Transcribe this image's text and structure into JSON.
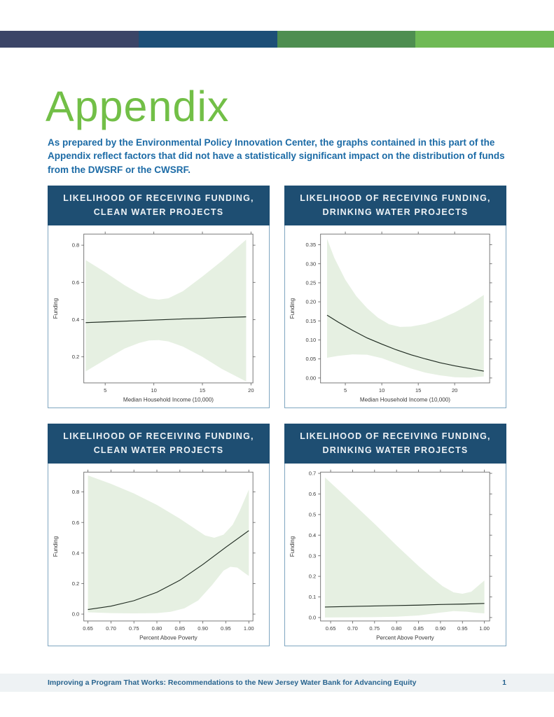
{
  "page": {
    "heading": "Appendix",
    "intro": "As prepared by the Environmental Policy Innovation Center, the graphs contained in this part of the Appendix reflect factors that did not have a statistically significant impact on the distribution of funds from the DWSRF or the CWSRF.",
    "footer": {
      "text": "Improving a Program That Works: Recommendations to the New Jersey Water Bank for Advancing Equity",
      "page_number": "1"
    }
  },
  "colors": {
    "top_bar_segments": [
      "#3B4567",
      "#1D4F77",
      "#4E8E50",
      "#6FBA55"
    ],
    "heading_green": "#72BF47",
    "intro_blue": "#1C6BA6",
    "chart_header_bg": "#1E4E72",
    "chart_header_text": "#EDF2F6",
    "card_border": "#7FA6C0",
    "band_fill": "#E6F0E2",
    "line_color": "#1F2B21",
    "axis_color": "#6A6A6A",
    "axis_text": "#3A3A3A",
    "footer_bg": "#EEF2F4",
    "footer_text": "#28648F"
  },
  "chart_data": [
    {
      "type": "line",
      "title_line1": "LIKELIHOOD OF RECEIVING FUNDING,",
      "title_line2": "CLEAN WATER PROJECTS",
      "xlabel": "Median Household Income (10,000)",
      "ylabel": "Funding",
      "xlim": [
        2.8,
        20.2
      ],
      "ylim": [
        0.06,
        0.86
      ],
      "xticks": [
        5,
        10,
        15,
        20
      ],
      "xtick_labels": [
        "5",
        "10",
        "15",
        "20"
      ],
      "yticks": [
        0.2,
        0.4,
        0.6,
        0.8
      ],
      "ytick_labels": [
        "0.2",
        "0.4",
        "0.6",
        "0.8"
      ],
      "grid": false,
      "legend": null,
      "line": [
        [
          3,
          0.384
        ],
        [
          5,
          0.388
        ],
        [
          7,
          0.392
        ],
        [
          9,
          0.396
        ],
        [
          11,
          0.4
        ],
        [
          13,
          0.404
        ],
        [
          15,
          0.407
        ],
        [
          17,
          0.411
        ],
        [
          19.5,
          0.415
        ]
      ],
      "band_upper": [
        [
          3,
          0.72
        ],
        [
          5,
          0.655
        ],
        [
          7,
          0.585
        ],
        [
          8.5,
          0.54
        ],
        [
          9.5,
          0.515
        ],
        [
          10.5,
          0.508
        ],
        [
          11.5,
          0.515
        ],
        [
          13,
          0.553
        ],
        [
          15,
          0.632
        ],
        [
          17,
          0.715
        ],
        [
          19.5,
          0.83
        ]
      ],
      "band_lower": [
        [
          3,
          0.122
        ],
        [
          5,
          0.185
        ],
        [
          7,
          0.245
        ],
        [
          8.5,
          0.275
        ],
        [
          9.5,
          0.288
        ],
        [
          10.5,
          0.29
        ],
        [
          11.5,
          0.283
        ],
        [
          13,
          0.255
        ],
        [
          15,
          0.2
        ],
        [
          17,
          0.135
        ],
        [
          19.5,
          0.068
        ]
      ]
    },
    {
      "type": "line",
      "title_line1": "LIKELIHOOD OF RECEIVING FUNDING,",
      "title_line2": "DRINKING WATER PROJECTS",
      "xlabel": "Median Household Income (10,000)",
      "ylabel": "Funding",
      "xlim": [
        1.6,
        24.8
      ],
      "ylim": [
        -0.013,
        0.378
      ],
      "xticks": [
        5,
        10,
        15,
        20
      ],
      "xtick_labels": [
        "5",
        "10",
        "15",
        "20"
      ],
      "yticks": [
        0.0,
        0.05,
        0.1,
        0.15,
        0.2,
        0.25,
        0.3,
        0.35
      ],
      "ytick_labels": [
        "0.00",
        "0.05",
        "0.10",
        "0.15",
        "0.20",
        "0.25",
        "0.30",
        "0.35"
      ],
      "grid": false,
      "legend": null,
      "line": [
        [
          2.5,
          0.165
        ],
        [
          4,
          0.147
        ],
        [
          6,
          0.125
        ],
        [
          8,
          0.105
        ],
        [
          10,
          0.089
        ],
        [
          12,
          0.074
        ],
        [
          14,
          0.061
        ],
        [
          16,
          0.05
        ],
        [
          18,
          0.04
        ],
        [
          20,
          0.032
        ],
        [
          22,
          0.025
        ],
        [
          24,
          0.018
        ]
      ],
      "band_upper": [
        [
          2.5,
          0.365
        ],
        [
          3.5,
          0.315
        ],
        [
          5,
          0.258
        ],
        [
          6.5,
          0.215
        ],
        [
          8,
          0.183
        ],
        [
          9.5,
          0.158
        ],
        [
          11,
          0.141
        ],
        [
          12.5,
          0.134
        ],
        [
          14,
          0.135
        ],
        [
          16,
          0.142
        ],
        [
          18,
          0.155
        ],
        [
          20,
          0.172
        ],
        [
          22,
          0.193
        ],
        [
          24,
          0.218
        ]
      ],
      "band_lower": [
        [
          2.5,
          0.053
        ],
        [
          4,
          0.058
        ],
        [
          6,
          0.062
        ],
        [
          8,
          0.061
        ],
        [
          10,
          0.052
        ],
        [
          12,
          0.038
        ],
        [
          14,
          0.025
        ],
        [
          16,
          0.014
        ],
        [
          18,
          0.007
        ],
        [
          20,
          0.002
        ],
        [
          22,
          0.001
        ],
        [
          24,
          0.004
        ]
      ]
    },
    {
      "type": "line",
      "title_line1": "LIKELIHOOD OF RECEIVING FUNDING,",
      "title_line2": "CLEAN WATER PROJECTS",
      "xlabel": "Percent Above Poverty",
      "ylabel": "Funding",
      "xlim": [
        0.641,
        1.009
      ],
      "ylim": [
        -0.045,
        0.93
      ],
      "xticks": [
        0.65,
        0.7,
        0.75,
        0.8,
        0.85,
        0.9,
        0.95,
        1.0
      ],
      "xtick_labels": [
        "0.65",
        "0.70",
        "0.75",
        "0.80",
        "0.85",
        "0.90",
        "0.95",
        "1.00"
      ],
      "yticks": [
        0.0,
        0.2,
        0.4,
        0.6,
        0.8
      ],
      "ytick_labels": [
        "0.0",
        "0.2",
        "0.4",
        "0.6",
        "0.8"
      ],
      "grid": false,
      "legend": null,
      "line": [
        [
          0.65,
          0.03
        ],
        [
          0.7,
          0.052
        ],
        [
          0.75,
          0.088
        ],
        [
          0.8,
          0.143
        ],
        [
          0.85,
          0.222
        ],
        [
          0.9,
          0.325
        ],
        [
          0.95,
          0.438
        ],
        [
          1.0,
          0.547
        ]
      ],
      "band_upper": [
        [
          0.65,
          0.908
        ],
        [
          0.7,
          0.853
        ],
        [
          0.75,
          0.79
        ],
        [
          0.8,
          0.715
        ],
        [
          0.85,
          0.625
        ],
        [
          0.88,
          0.565
        ],
        [
          0.905,
          0.515
        ],
        [
          0.925,
          0.5
        ],
        [
          0.945,
          0.52
        ],
        [
          0.965,
          0.585
        ],
        [
          0.98,
          0.675
        ],
        [
          1.0,
          0.815
        ]
      ],
      "band_lower": [
        [
          0.65,
          0.012
        ],
        [
          0.7,
          0.007
        ],
        [
          0.75,
          0.005
        ],
        [
          0.8,
          0.007
        ],
        [
          0.83,
          0.015
        ],
        [
          0.86,
          0.038
        ],
        [
          0.89,
          0.09
        ],
        [
          0.92,
          0.19
        ],
        [
          0.945,
          0.285
        ],
        [
          0.96,
          0.31
        ],
        [
          0.975,
          0.305
        ],
        [
          1.0,
          0.25
        ]
      ]
    },
    {
      "type": "line",
      "title_line1": "LIKELIHOOD OF RECEIVING FUNDING,",
      "title_line2": "DRINKING WATER PROJECTS",
      "xlabel": "Percent Above Poverty",
      "ylabel": "Funding",
      "xlim": [
        0.627,
        1.012
      ],
      "ylim": [
        -0.017,
        0.706
      ],
      "xticks": [
        0.65,
        0.7,
        0.75,
        0.8,
        0.85,
        0.9,
        0.95,
        1.0
      ],
      "xtick_labels": [
        "0.65",
        "0.70",
        "0.75",
        "0.80",
        "0.85",
        "0.90",
        "0.95",
        "1.00"
      ],
      "yticks": [
        0.0,
        0.1,
        0.2,
        0.3,
        0.4,
        0.5,
        0.6,
        0.7
      ],
      "ytick_labels": [
        "0.0",
        "0.1",
        "0.2",
        "0.3",
        "0.4",
        "0.5",
        "0.6",
        "0.7"
      ],
      "grid": false,
      "legend": null,
      "line": [
        [
          0.637,
          0.051
        ],
        [
          0.7,
          0.054
        ],
        [
          0.75,
          0.056
        ],
        [
          0.8,
          0.058
        ],
        [
          0.85,
          0.06
        ],
        [
          0.9,
          0.063
        ],
        [
          0.95,
          0.065
        ],
        [
          1.0,
          0.068
        ]
      ],
      "band_upper": [
        [
          0.637,
          0.68
        ],
        [
          0.67,
          0.615
        ],
        [
          0.7,
          0.555
        ],
        [
          0.75,
          0.455
        ],
        [
          0.8,
          0.35
        ],
        [
          0.85,
          0.25
        ],
        [
          0.88,
          0.195
        ],
        [
          0.905,
          0.152
        ],
        [
          0.93,
          0.122
        ],
        [
          0.95,
          0.115
        ],
        [
          0.97,
          0.125
        ],
        [
          1.0,
          0.18
        ]
      ],
      "band_lower": [
        [
          0.637,
          0.0
        ],
        [
          0.7,
          0.001
        ],
        [
          0.75,
          0.002
        ],
        [
          0.8,
          0.004
        ],
        [
          0.85,
          0.01
        ],
        [
          0.9,
          0.024
        ],
        [
          0.93,
          0.031
        ],
        [
          0.96,
          0.028
        ],
        [
          0.98,
          0.023
        ],
        [
          1.0,
          0.02
        ]
      ]
    }
  ]
}
